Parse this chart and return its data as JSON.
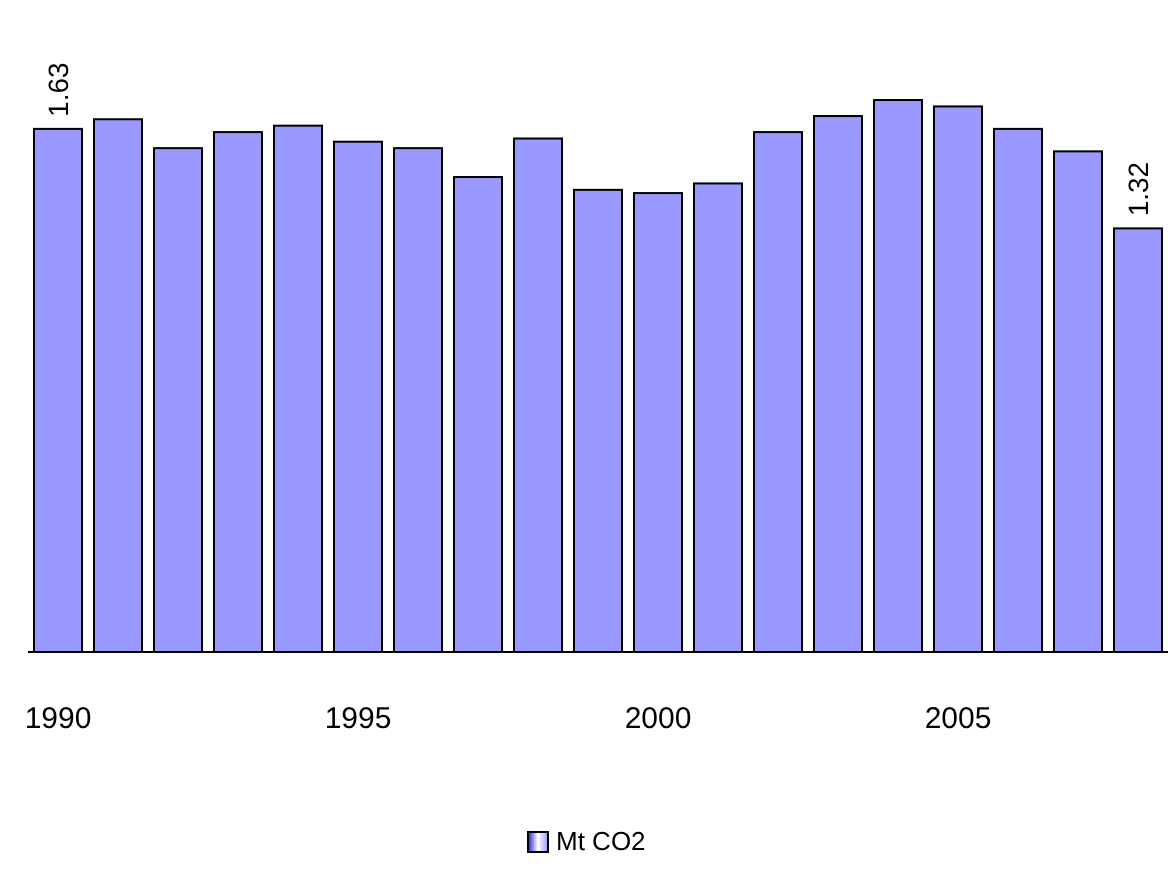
{
  "chart_data": {
    "type": "bar",
    "categories": [
      "1990",
      null,
      null,
      null,
      null,
      "1995",
      null,
      null,
      null,
      null,
      "2000",
      null,
      null,
      null,
      null,
      "2005",
      null,
      null,
      null
    ],
    "series": [
      {
        "name": "Mt CO2",
        "color": "#9999ff",
        "values": [
          1.63,
          1.66,
          1.57,
          1.62,
          1.64,
          1.59,
          1.57,
          1.48,
          1.6,
          1.44,
          1.43,
          1.46,
          1.62,
          1.67,
          1.72,
          1.7,
          1.63,
          1.56,
          1.32
        ],
        "value_labels": [
          "1.63",
          null,
          null,
          null,
          null,
          null,
          null,
          null,
          null,
          null,
          null,
          null,
          null,
          null,
          null,
          null,
          null,
          null,
          "1.32"
        ]
      }
    ],
    "tick_labels": "x",
    "legend": "bottom",
    "grid": false
  }
}
